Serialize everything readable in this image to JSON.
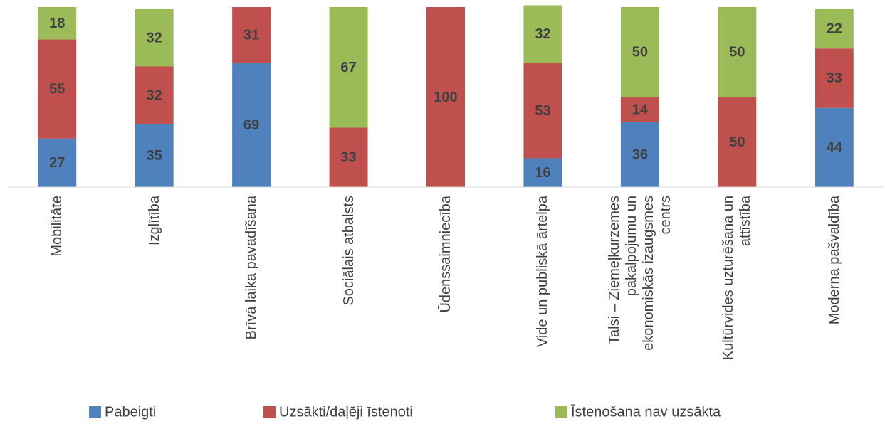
{
  "chart_data": {
    "type": "stacked_bar",
    "categories": [
      "Mobilitāte",
      "Izglītība",
      "Brīvā laika pavadīšana",
      "Sociālais atbalsts",
      "Ūdenssaimniecība",
      "Vide un publiskā ārtelpa",
      "Talsi – Ziemeļkurzemes pakalpojumu un ekonomiskās izaugsmes centrs",
      "Kultūrvides uzturēšana un attīstība",
      "Moderna pašvaldība"
    ],
    "series": [
      {
        "name": "Pabeigti",
        "color": "#4f81bd",
        "values": [
          27,
          35,
          69,
          null,
          null,
          16,
          36,
          null,
          44
        ]
      },
      {
        "name": "Uzsākti/daļēji īstenoti",
        "color": "#c0504d",
        "values": [
          55,
          32,
          31,
          33,
          100,
          53,
          14,
          50,
          33
        ]
      },
      {
        "name": "Īstenošana nav uzsākta",
        "color": "#9bbb59",
        "values": [
          18,
          32,
          null,
          67,
          null,
          32,
          50,
          50,
          22
        ]
      }
    ],
    "ylim": [
      0,
      100
    ],
    "legend": "bottom"
  }
}
